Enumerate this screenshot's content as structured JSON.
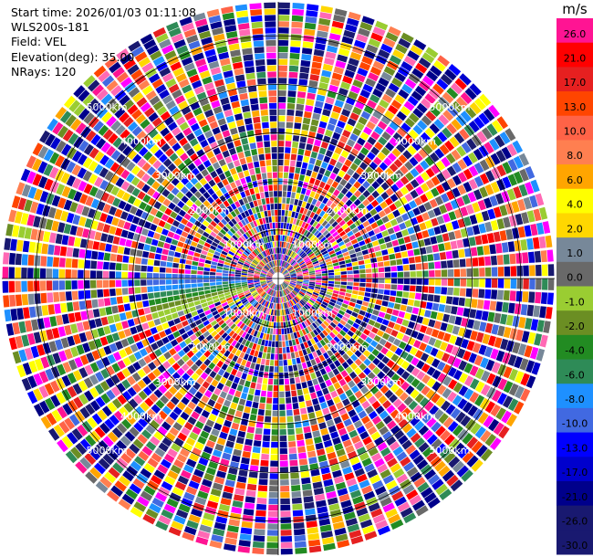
{
  "info": {
    "start_time": "Start time: 2026/01/03 01:11:08",
    "station": "WLS200s-181",
    "field": "Field: VEL",
    "elevation": "Elevation(deg): 35.00",
    "nrays": "NRays: 120"
  },
  "colorbar": {
    "unit": "m/s",
    "levels": [
      {
        "label": "26.0",
        "color": "#ff1493"
      },
      {
        "label": "21.0",
        "color": "#ff0000"
      },
      {
        "label": "17.0",
        "color": "#e62020"
      },
      {
        "label": "13.0",
        "color": "#ff4500"
      },
      {
        "label": "10.0",
        "color": "#ff6347"
      },
      {
        "label": "8.0",
        "color": "#ff7f50"
      },
      {
        "label": "6.0",
        "color": "#ffa500"
      },
      {
        "label": "4.0",
        "color": "#ffff00"
      },
      {
        "label": "2.0",
        "color": "#ffd700"
      },
      {
        "label": "1.0",
        "color": "#778899"
      },
      {
        "label": "0.0",
        "color": "#696969"
      },
      {
        "label": "-1.0",
        "color": "#9acd32"
      },
      {
        "label": "-2.0",
        "color": "#6b8e23"
      },
      {
        "label": "-4.0",
        "color": "#228b22"
      },
      {
        "label": "-6.0",
        "color": "#2e8b57"
      },
      {
        "label": "-8.0",
        "color": "#1e90ff"
      },
      {
        "label": "-10.0",
        "color": "#4169e1"
      },
      {
        "label": "-13.0",
        "color": "#0000ff"
      },
      {
        "label": "-17.0",
        "color": "#0000cd"
      },
      {
        "label": "-21.0",
        "color": "#00008b"
      },
      {
        "label": "-26.0",
        "color": "#191970"
      },
      {
        "label": "-30.0",
        "color": "#191970"
      }
    ]
  },
  "chart_data": {
    "type": "heatmap",
    "projection": "polar (PPI)",
    "field": "VEL",
    "units": "m/s",
    "nrays": 120,
    "range_rings_km": [
      1000,
      2000,
      3000,
      4000,
      5000
    ],
    "ring_labels": [
      "1000km",
      "2000km",
      "3000km",
      "4000km",
      "5000km"
    ],
    "value_range": [
      -30,
      26
    ],
    "background": "mostly noise (random velocities)",
    "coherent_sector": {
      "azimuth_deg": [
        250,
        272
      ],
      "max_range_km": 2800,
      "values_m_s": [
        -10,
        -8,
        -6,
        -4,
        -1,
        1
      ]
    }
  }
}
